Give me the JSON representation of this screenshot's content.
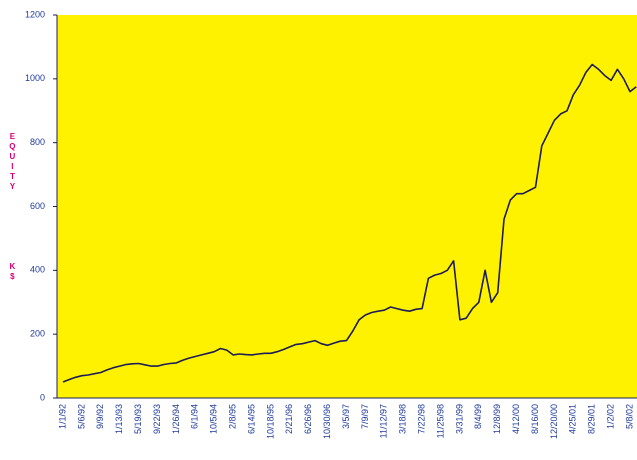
{
  "chart_data": {
    "type": "line",
    "ylabel": "EQUITY",
    "yunit": "K$",
    "categories": [
      "1/1/92",
      null,
      null,
      "5/6/92",
      null,
      null,
      "9/9/92",
      null,
      null,
      "1/13/93",
      null,
      null,
      "5/19/93",
      null,
      null,
      "9/22/93",
      null,
      null,
      "1/26/94",
      null,
      null,
      "6/1/94",
      null,
      null,
      "10/5/94",
      null,
      null,
      "2/8/95",
      null,
      null,
      "6/14/95",
      null,
      null,
      "10/18/95",
      null,
      null,
      "2/21/96",
      null,
      null,
      "6/26/96",
      null,
      null,
      "10/30/96",
      null,
      null,
      "3/5/97",
      null,
      null,
      "7/9/97",
      null,
      null,
      "11/12/97",
      null,
      null,
      "3/18/98",
      null,
      null,
      "7/22/98",
      null,
      null,
      "11/25/98",
      null,
      null,
      "3/31/99",
      null,
      null,
      "8/4/99",
      null,
      null,
      "12/8/99",
      null,
      null,
      "4/12/00",
      null,
      null,
      "8/16/00",
      null,
      null,
      "12/20/00",
      null,
      null,
      "4/25/01",
      null,
      null,
      "8/29/01",
      null,
      null,
      "1/2/02",
      null,
      null,
      "5/8/02",
      null
    ],
    "series": [
      {
        "name": "Equity",
        "color": "#1c1c5a",
        "values": [
          50,
          58,
          65,
          70,
          72,
          76,
          80,
          88,
          95,
          100,
          105,
          107,
          108,
          104,
          100,
          100,
          105,
          108,
          110,
          118,
          125,
          130,
          135,
          140,
          145,
          155,
          150,
          135,
          138,
          136,
          135,
          138,
          140,
          140,
          145,
          152,
          160,
          168,
          170,
          175,
          180,
          170,
          165,
          172,
          178,
          180,
          210,
          245,
          260,
          268,
          272,
          275,
          285,
          280,
          275,
          272,
          278,
          280,
          375,
          385,
          390,
          400,
          430,
          245,
          250,
          280,
          300,
          400,
          300,
          330,
          560,
          620,
          640,
          640,
          650,
          660,
          790,
          830,
          870,
          890,
          900,
          950,
          980,
          1020,
          1045,
          1030,
          1010,
          995,
          1030,
          1000,
          960,
          975
        ]
      }
    ],
    "ylim": [
      0,
      1200
    ],
    "yticks": [
      0,
      200,
      400,
      600,
      800,
      1000,
      1200
    ],
    "plot_color": "#fff200",
    "label_color": "#1f3b9c",
    "ylabel_color": "#d6007a"
  }
}
